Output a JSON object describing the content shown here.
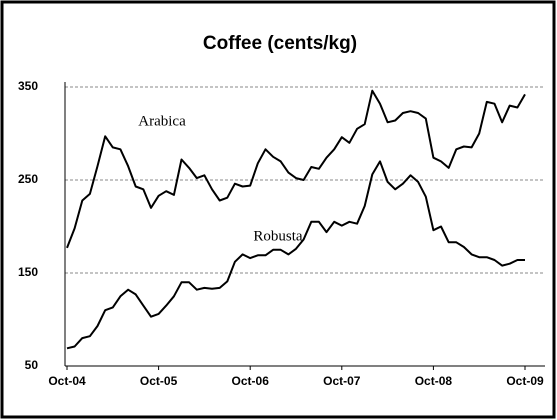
{
  "chart_data": {
    "type": "line",
    "title": "Coffee (cents/kg)",
    "categories": [
      "Oct-04",
      null,
      null,
      null,
      null,
      null,
      null,
      null,
      null,
      null,
      null,
      null,
      "Oct-05",
      null,
      null,
      null,
      null,
      null,
      null,
      null,
      null,
      null,
      null,
      null,
      "Oct-06",
      null,
      null,
      null,
      null,
      null,
      null,
      null,
      null,
      null,
      null,
      null,
      "Oct-07",
      null,
      null,
      null,
      null,
      null,
      null,
      null,
      null,
      null,
      null,
      null,
      "Oct-08",
      null,
      null,
      null,
      null,
      null,
      null,
      null,
      null,
      null,
      null,
      null,
      "Oct-09"
    ],
    "series": [
      {
        "name": "Arabica",
        "color": "#000000",
        "values": [
          177,
          198,
          228,
          235,
          265,
          297,
          285,
          283,
          265,
          243,
          240,
          220,
          233,
          238,
          234,
          272,
          263,
          252,
          255,
          240,
          228,
          231,
          246,
          243,
          244,
          268,
          283,
          275,
          270,
          258,
          252,
          250,
          264,
          262,
          274,
          283,
          296,
          290,
          305,
          310,
          346,
          332,
          312,
          314,
          322,
          324,
          322,
          316,
          274,
          270,
          263,
          283,
          286,
          285,
          300,
          334,
          332,
          312,
          330,
          328,
          342
        ]
      },
      {
        "name": "Robusta",
        "color": "#000000",
        "values": [
          69,
          71,
          80,
          82,
          93,
          110,
          113,
          125,
          132,
          127,
          115,
          103,
          106,
          115,
          125,
          140,
          140,
          132,
          134,
          133,
          134,
          141,
          162,
          170,
          166,
          169,
          169,
          175,
          175,
          170,
          176,
          186,
          205,
          205,
          194,
          205,
          201,
          205,
          203,
          222,
          256,
          270,
          248,
          240,
          246,
          255,
          248,
          232,
          196,
          200,
          183,
          183,
          178,
          170,
          167,
          167,
          164,
          158,
          160,
          164,
          164
        ]
      }
    ],
    "ylim": [
      50,
      350
    ],
    "yticks": [
      50,
      150,
      250,
      350
    ],
    "grid": true
  }
}
